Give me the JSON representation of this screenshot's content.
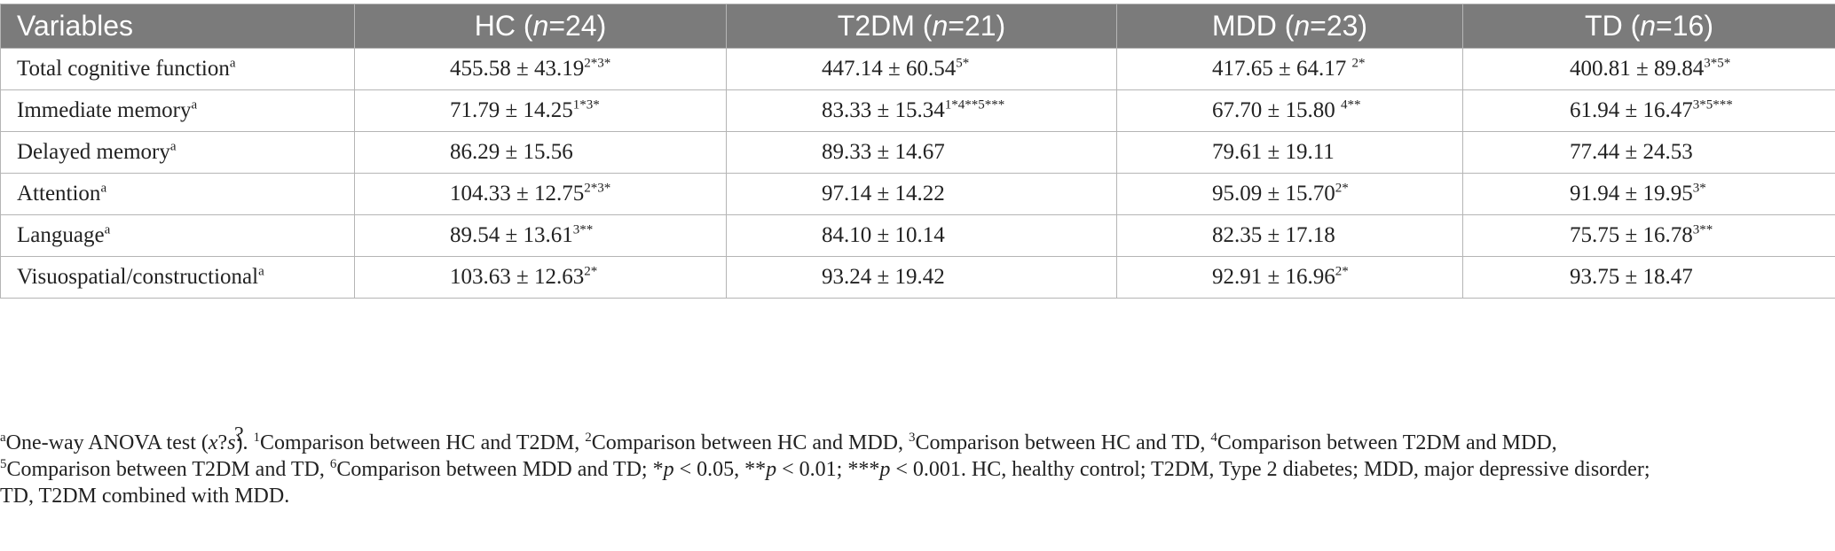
{
  "header": {
    "variables": "Variables",
    "cols": [
      {
        "pre": "HC (",
        "n": "n",
        "post": "=24)"
      },
      {
        "pre": "T2DM (",
        "n": "n",
        "post": "=21)"
      },
      {
        "pre": "MDD (",
        "n": "n",
        "post": "=23)"
      },
      {
        "pre": "TD (",
        "n": "n",
        "post": "=16)"
      }
    ]
  },
  "rows": [
    {
      "label": "Total cognitive function",
      "label_sup": "a",
      "cells": [
        {
          "v": "455.58 ± 43.19",
          "s": "2*3*"
        },
        {
          "v": "447.14 ± 60.54",
          "s": "5*"
        },
        {
          "v": "417.65 ± 64.17 ",
          "s": "2*"
        },
        {
          "v": "400.81 ± 89.84",
          "s": "3*5*"
        }
      ]
    },
    {
      "label": "Immediate memory",
      "label_sup": "a",
      "cells": [
        {
          "v": "71.79 ± 14.25",
          "s": "1*3*"
        },
        {
          "v": "83.33 ± 15.34",
          "s": "1*4**5***"
        },
        {
          "v": "67.70 ± 15.80 ",
          "s": "4**"
        },
        {
          "v": "61.94 ± 16.47",
          "s": "3*5***"
        }
      ]
    },
    {
      "label": "Delayed memory",
      "label_sup": "a",
      "cells": [
        {
          "v": "86.29 ± 15.56",
          "s": ""
        },
        {
          "v": "89.33 ± 14.67",
          "s": ""
        },
        {
          "v": "79.61 ± 19.11",
          "s": ""
        },
        {
          "v": "77.44 ± 24.53",
          "s": ""
        }
      ]
    },
    {
      "label": "Attention",
      "label_sup": "a",
      "cells": [
        {
          "v": "104.33 ± 12.75",
          "s": "2*3*"
        },
        {
          "v": "97.14 ± 14.22",
          "s": ""
        },
        {
          "v": "95.09 ± 15.70",
          "s": "2*"
        },
        {
          "v": "91.94 ± 19.95",
          "s": "3*"
        }
      ]
    },
    {
      "label": "Language",
      "label_sup": "a",
      "cells": [
        {
          "v": "89.54 ± 13.61",
          "s": "3**"
        },
        {
          "v": "84.10 ± 10.14",
          "s": ""
        },
        {
          "v": "82.35 ± 17.18",
          "s": ""
        },
        {
          "v": "75.75 ± 16.78",
          "s": "3**"
        }
      ]
    },
    {
      "label": "Visuospatial/constructional",
      "label_sup": "a",
      "cells": [
        {
          "v": "103.63 ± 12.63",
          "s": "2*"
        },
        {
          "v": "93.24 ± 19.42",
          "s": ""
        },
        {
          "v": "92.91 ± 16.96",
          "s": "2*"
        },
        {
          "v": "93.75 ± 18.47",
          "s": ""
        }
      ]
    }
  ],
  "footnote": {
    "qmark": "?",
    "line1_sup": "a",
    "line1_a": "One-way ANOVA test (",
    "line1_x": "x",
    "line1_b": "?",
    "line1_s": "s",
    "line1_c": "). ",
    "c1_sup": "1",
    "c1": "Comparison between HC and T2DM, ",
    "c2_sup": "2",
    "c2": "Comparison between HC and MDD, ",
    "c3_sup": "3",
    "c3": "Comparison between HC and TD, ",
    "c4_sup": "4",
    "c4": "Comparison between T2DM and MDD,",
    "c5_sup": "5",
    "c5": "Comparison between T2DM and TD, ",
    "c6_sup": "6",
    "c6": "Comparison between MDD and TD; ",
    "p1_pre": "*",
    "p1_p": "p",
    "p1_post": " < 0.05, ",
    "p2_pre": "**",
    "p2_p": "p",
    "p2_post": " < 0.01; ",
    "p3_pre": "***",
    "p3_p": "p",
    "p3_post": " < 0.001. HC, healthy control; T2DM, Type 2 diabetes; MDD, major depressive disorder;",
    "line3": "TD, T2DM combined with MDD."
  }
}
